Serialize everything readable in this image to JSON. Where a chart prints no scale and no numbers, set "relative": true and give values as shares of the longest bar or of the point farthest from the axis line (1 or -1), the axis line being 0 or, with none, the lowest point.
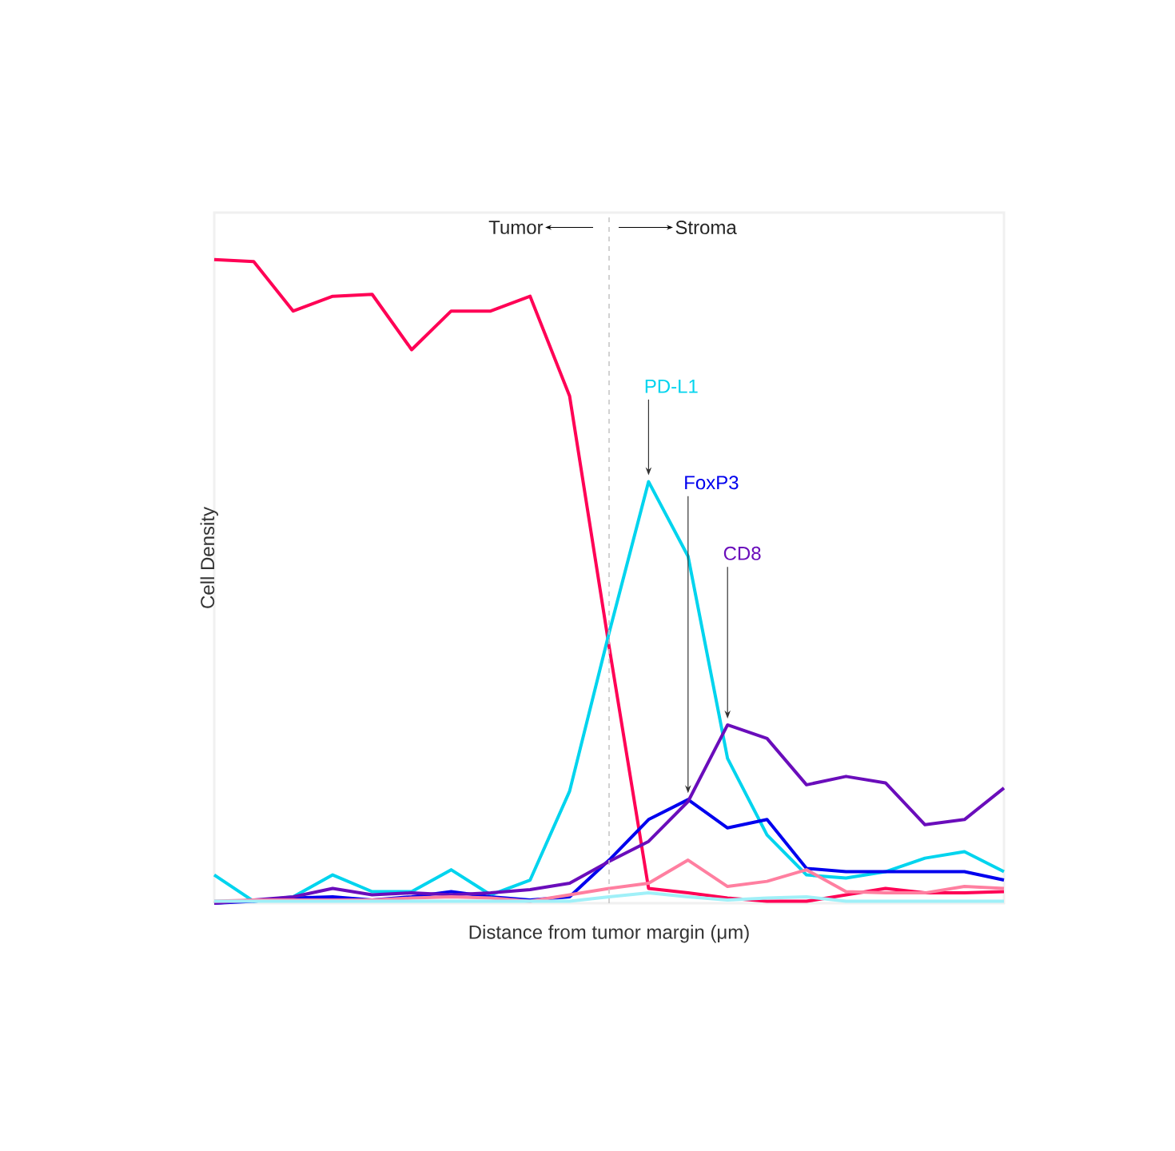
{
  "chart_data": {
    "type": "line",
    "relative": true,
    "xlabel": "Distance from tumor margin (μm)",
    "ylabel": "Cell Density",
    "categories": [
      null,
      null,
      null,
      null,
      null,
      null,
      null,
      null,
      null,
      null,
      null,
      null,
      null,
      null,
      null,
      null,
      null,
      null,
      null,
      null,
      null
    ],
    "annotations": [
      "Tumor",
      "Stroma"
    ],
    "series": [
      {
        "color": "#ff0055",
        "values": [
          1.0,
          0.997,
          0.92,
          0.943,
          0.946,
          0.86,
          0.92,
          0.92,
          0.943,
          0.788,
          0.399,
          0.023,
          0.016,
          0.008,
          0.003,
          0.003,
          0.013,
          0.023,
          0.016,
          0.016,
          0.018
        ]
      },
      {
        "name": "PD-L1",
        "color": "#00d4ee",
        "values": [
          0.044,
          0.003,
          0.01,
          0.044,
          0.018,
          0.018,
          0.052,
          0.013,
          0.036,
          0.174,
          0.42,
          0.655,
          0.539,
          0.225,
          0.106,
          0.044,
          0.039,
          0.049,
          0.07,
          0.08,
          0.049
        ]
      },
      {
        "name": "FoxP3",
        "color": "#0000ee",
        "values": [
          0,
          0.003,
          0.008,
          0.01,
          0.005,
          0.01,
          0.018,
          0.01,
          0.005,
          0.01,
          0.067,
          0.13,
          0.161,
          0.117,
          0.13,
          0.054,
          0.049,
          0.049,
          0.049,
          0.049,
          0.036
        ]
      },
      {
        "name": "CD8",
        "color": "#6a0dbb",
        "values": [
          0,
          0.005,
          0.01,
          0.023,
          0.013,
          0.016,
          0.013,
          0.016,
          0.021,
          0.031,
          0.065,
          0.096,
          0.158,
          0.277,
          0.256,
          0.184,
          0.197,
          0.187,
          0.122,
          0.13,
          0.179
        ]
      },
      {
        "color": "#ff7fa0",
        "values": [
          0.003,
          0.005,
          0.005,
          0.005,
          0.005,
          0.008,
          0.01,
          0.008,
          0.003,
          0.013,
          0.023,
          0.031,
          0.067,
          0.026,
          0.034,
          0.052,
          0.018,
          0.016,
          0.016,
          0.026,
          0.023
        ]
      },
      {
        "color": "#a0f0f8",
        "values": [
          0.003,
          0.003,
          0.003,
          0.003,
          0.003,
          0.003,
          0.003,
          0.003,
          0.003,
          0.003,
          0.01,
          0.016,
          0.01,
          0.005,
          0.008,
          0.01,
          0.003,
          0.003,
          0.003,
          0.003,
          0.003
        ]
      }
    ]
  }
}
